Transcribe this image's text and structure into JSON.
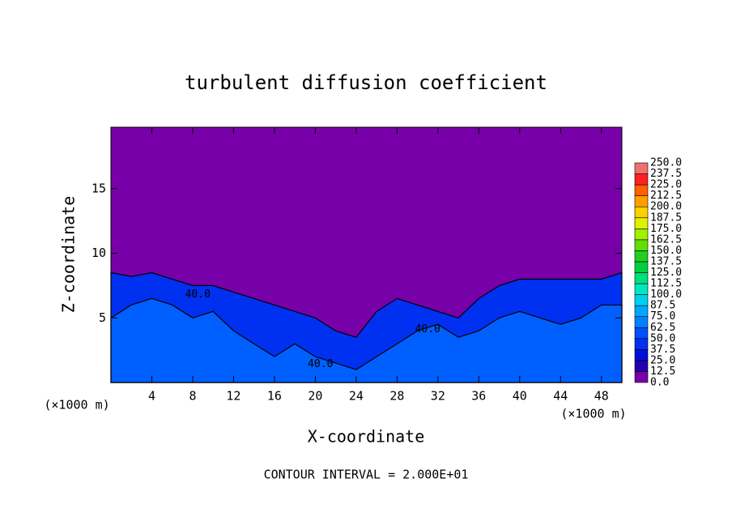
{
  "chart_data": {
    "type": "contour",
    "title": "turbulent diffusion coefficient",
    "x_label": "X-coordinate",
    "y_label": "Z-coordinate",
    "x_unit": "(×1000 m)",
    "y_unit": "(×1000 m)",
    "footer": "CONTOUR INTERVAL = 2.000E+01",
    "background_color": "#7800a8",
    "xlim": [
      0,
      50
    ],
    "ylim": [
      0,
      19.75
    ],
    "xticks": [
      4,
      8,
      12,
      16,
      20,
      24,
      28,
      32,
      36,
      40,
      44,
      48
    ],
    "yticks": [
      5,
      10,
      15
    ],
    "x": [
      0,
      2,
      4,
      6,
      8,
      10,
      12,
      14,
      16,
      18,
      20,
      22,
      24,
      26,
      28,
      30,
      32,
      34,
      36,
      38,
      40,
      42,
      44,
      46,
      48,
      50
    ],
    "series": [
      {
        "color": "#0030f0",
        "values": [
          8.5,
          8.2,
          8.5,
          8.0,
          7.5,
          7.5,
          7.0,
          6.5,
          6.0,
          5.5,
          5.0,
          4.0,
          3.5,
          5.5,
          6.5,
          6.0,
          5.5,
          5.0,
          6.5,
          7.5,
          8.0,
          8.0,
          8.0,
          8.0,
          8.0,
          8.5
        ]
      },
      {
        "color": "#0060ff",
        "values": [
          5,
          6,
          6.5,
          6,
          5,
          5.5,
          4,
          3,
          2,
          3,
          2,
          1.5,
          1,
          2,
          3,
          4,
          4.5,
          3.5,
          4,
          5,
          5.5,
          5,
          4.5,
          5,
          6,
          6
        ]
      }
    ],
    "contour_labels": [
      {
        "text": "40.0",
        "x": 8.5,
        "z": 6.8
      },
      {
        "text": "40.0",
        "x": 31,
        "z": 4.1
      },
      {
        "text": "40.0",
        "x": 20.5,
        "z": 1.4
      }
    ],
    "colorbar": {
      "levels": [
        {
          "value": 0,
          "label": "0.0"
        },
        12.5,
        {
          "value": 25,
          "label": "25.0"
        },
        37.5,
        {
          "value": 50,
          "label": "50.0"
        },
        62.5,
        {
          "value": 75,
          "label": "75.0"
        },
        87.5,
        {
          "value": 100,
          "label": "100.0"
        },
        112.5,
        {
          "value": 125,
          "label": "125.0"
        },
        137.5,
        {
          "value": 150,
          "label": "150.0"
        },
        162.5,
        {
          "value": 175,
          "label": "175.0"
        },
        187.5,
        {
          "value": 200,
          "label": "200.0"
        },
        212.5,
        {
          "value": 225,
          "label": "225.0"
        },
        237.5,
        {
          "value": 250,
          "label": "250.0"
        }
      ],
      "colors": [
        "#7800a8",
        "#2200b0",
        "#0010d8",
        "#0030f0",
        "#0050ff",
        "#0080ff",
        "#00a8ff",
        "#00d0f0",
        "#00e8c0",
        "#00e080",
        "#00d040",
        "#20d020",
        "#60e000",
        "#a0f000",
        "#e0f000",
        "#ffd000",
        "#ffa000",
        "#ff6000",
        "#ff2020",
        "#f07070"
      ]
    }
  }
}
